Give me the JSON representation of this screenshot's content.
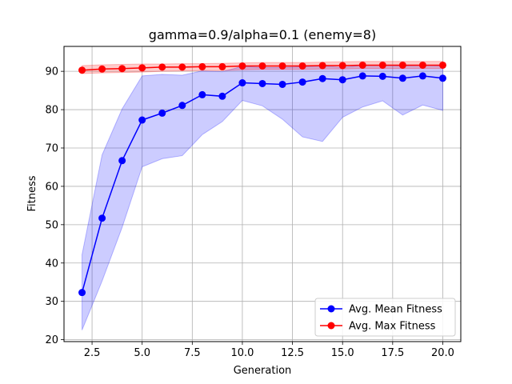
{
  "chart_data": {
    "type": "line",
    "title": "gamma=0.9/alpha=0.1 (enemy=8)",
    "xlabel": "Generation",
    "ylabel": "Fitness",
    "xlim": [
      1.1,
      20.9
    ],
    "ylim": [
      19.5,
      96.5
    ],
    "xticks": [
      2.5,
      5.0,
      7.5,
      10.0,
      12.5,
      15.0,
      17.5,
      20.0
    ],
    "xtick_labels": [
      "2.5",
      "5.0",
      "7.5",
      "10.0",
      "12.5",
      "15.0",
      "17.5",
      "20.0"
    ],
    "yticks": [
      20,
      30,
      40,
      50,
      60,
      70,
      80,
      90
    ],
    "ytick_labels": [
      "20",
      "30",
      "40",
      "50",
      "60",
      "70",
      "80",
      "90"
    ],
    "grid": true,
    "legend_position": "lower-right",
    "x": [
      2,
      3,
      4,
      5,
      6,
      7,
      8,
      9,
      10,
      11,
      12,
      13,
      14,
      15,
      16,
      17,
      18,
      19,
      20
    ],
    "series": [
      {
        "name": "Avg. Mean Fitness",
        "color": "#0000ff",
        "band_color": "#0000ff",
        "values": [
          32.3,
          51.7,
          66.7,
          77.3,
          79.1,
          81.1,
          83.9,
          83.5,
          87.0,
          86.8,
          86.6,
          87.2,
          88.1,
          87.8,
          88.8,
          88.7,
          88.2,
          88.8,
          88.2
        ],
        "upper": [
          42.2,
          68.2,
          80.2,
          88.8,
          89.2,
          89.0,
          90.1,
          89.9,
          91.3,
          91.0,
          91.0,
          91.2,
          91.4,
          91.0,
          91.6,
          91.6,
          91.4,
          91.6,
          91.4
        ],
        "lower": [
          22.5,
          35.3,
          49.3,
          65.1,
          67.2,
          68.0,
          73.5,
          76.9,
          82.4,
          81.0,
          77.5,
          72.9,
          71.7,
          78.0,
          80.7,
          82.3,
          78.6,
          81.2,
          79.8
        ]
      },
      {
        "name": "Avg. Max Fitness",
        "color": "#ff0000",
        "band_color": "#ff0000",
        "values": [
          90.3,
          90.6,
          90.7,
          90.9,
          91.1,
          91.1,
          91.2,
          91.2,
          91.4,
          91.4,
          91.4,
          91.4,
          91.5,
          91.5,
          91.6,
          91.6,
          91.6,
          91.6,
          91.6
        ],
        "upper": [
          91.5,
          91.7,
          91.8,
          91.9,
          91.9,
          92.0,
          92.0,
          92.1,
          92.2,
          92.3,
          92.3,
          92.3,
          92.4,
          92.5,
          92.6,
          92.6,
          92.6,
          92.6,
          92.6
        ],
        "lower": [
          89.4,
          89.6,
          89.7,
          89.8,
          90.0,
          90.1,
          90.2,
          90.2,
          90.4,
          90.5,
          90.5,
          90.5,
          90.6,
          90.6,
          90.7,
          90.7,
          90.7,
          90.7,
          90.7
        ]
      }
    ]
  }
}
